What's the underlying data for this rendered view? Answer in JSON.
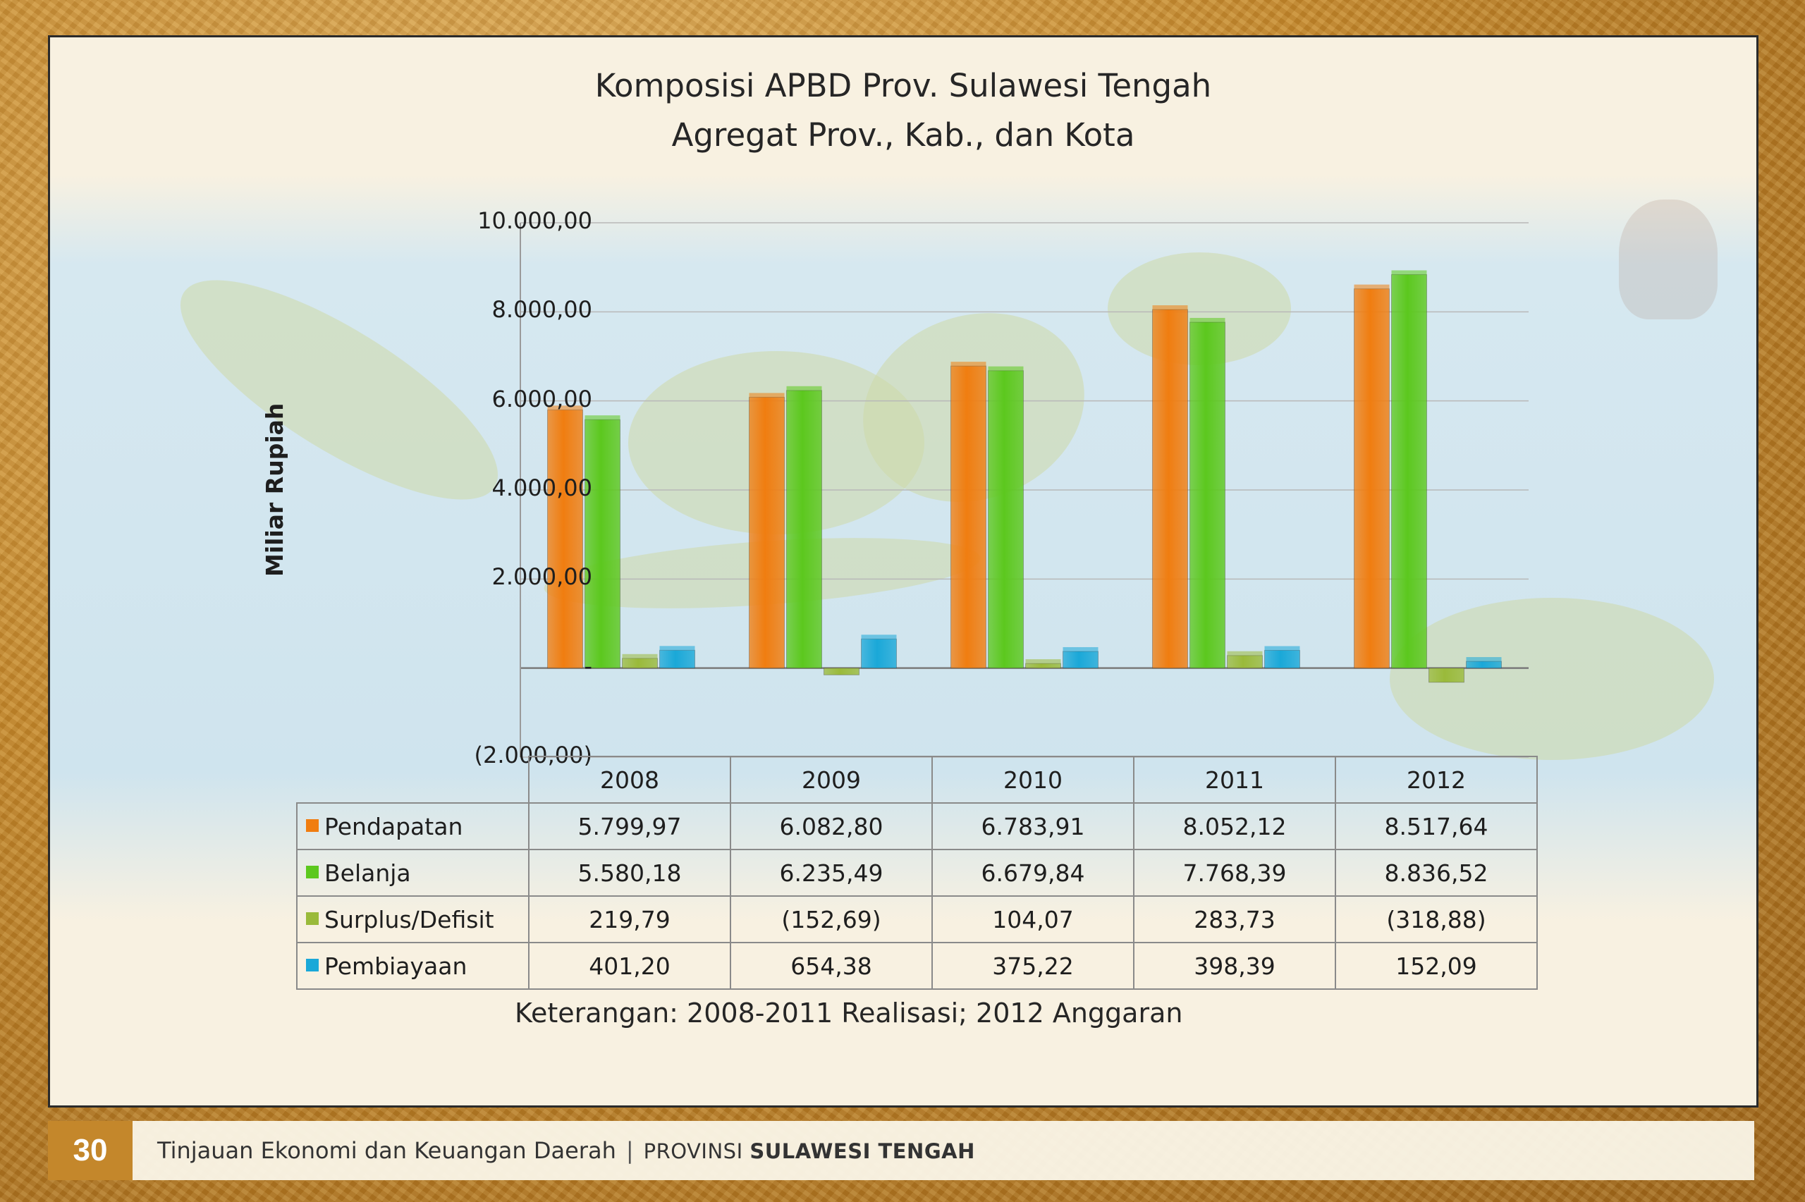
{
  "chart_data": {
    "type": "bar",
    "title": "Komposisi APBD Prov. Sulawesi Tengah",
    "subtitle": "Agregat Prov., Kab., dan Kota",
    "ylabel": "Miliar Rupiah",
    "xlabel": "",
    "ylim": [
      -2000,
      10000
    ],
    "yticks": [
      10000,
      8000,
      6000,
      4000,
      2000,
      0,
      -2000
    ],
    "ytick_labels": [
      "10.000,00",
      "8.000,00",
      "6.000,00",
      "4.000,00",
      "2.000,00",
      "-",
      "(2.000,00)"
    ],
    "grid": true,
    "legend": "data-table",
    "categories": [
      "2008",
      "2009",
      "2010",
      "2011",
      "2012"
    ],
    "series": [
      {
        "name": "Pendapatan",
        "color": "#f07d10",
        "values": [
          5799.97,
          6082.8,
          6783.91,
          8052.12,
          8517.64
        ],
        "labels": [
          "5.799,97",
          "6.082,80",
          "6.783,91",
          "8.052,12",
          "8.517,64"
        ]
      },
      {
        "name": "Belanja",
        "color": "#5cc81e",
        "values": [
          5580.18,
          6235.49,
          6679.84,
          7768.39,
          8836.52
        ],
        "labels": [
          "5.580,18",
          "6.235,49",
          "6.679,84",
          "7.768,39",
          "8.836,52"
        ]
      },
      {
        "name": "Surplus/Defisit",
        "color": "#9aba3a",
        "values": [
          219.79,
          -152.69,
          104.07,
          283.73,
          -318.88
        ],
        "labels": [
          "219,79",
          "(152,69)",
          "104,07",
          "283,73",
          "(318,88)"
        ]
      },
      {
        "name": "Pembiayaan",
        "color": "#1aa8d8",
        "values": [
          401.2,
          654.38,
          375.22,
          398.39,
          152.09
        ],
        "labels": [
          "401,20",
          "654,38",
          "375,22",
          "398,39",
          "152,09"
        ]
      }
    ]
  },
  "note": "Keterangan: 2008-2011 Realisasi; 2012 Anggaran",
  "footer": {
    "page_number": "30",
    "text": "Tinjauan Ekonomi dan Keuangan Daerah",
    "separator": "|",
    "prov_prefix": "PROVINSI",
    "prov_name": "SULAWESI TENGAH"
  }
}
